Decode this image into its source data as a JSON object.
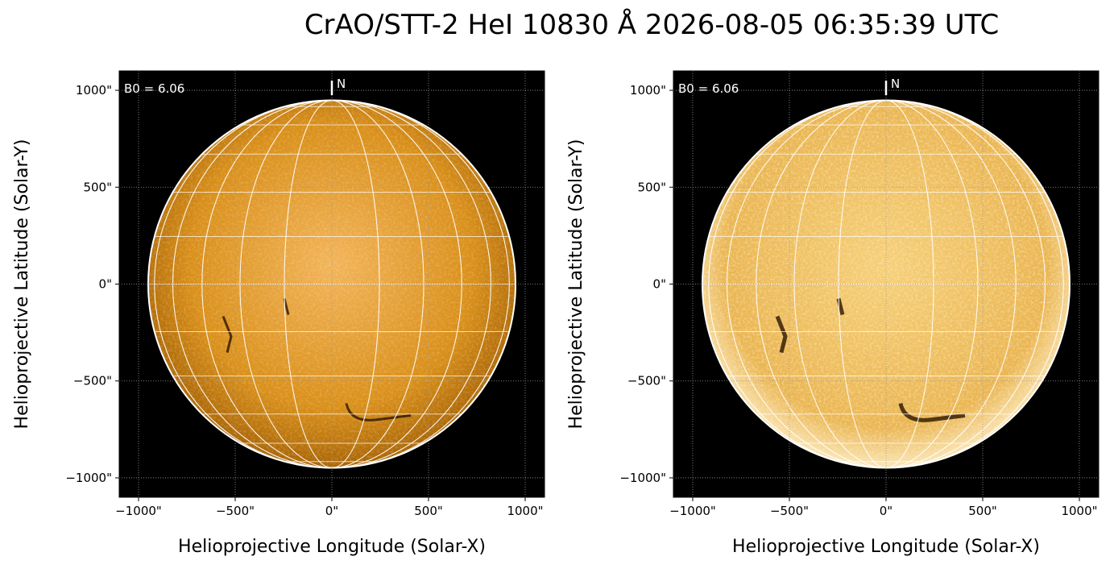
{
  "title": "CrAO/STT-2 HeI 10830 Å 2026-08-05 06:35:39 UTC",
  "chart_data": [
    {
      "type": "image",
      "xlabel": "Helioprojective Longitude (Solar-X)",
      "ylabel": "Helioprojective Latitude (Solar-Y)",
      "annotation": "B0 = 6.06",
      "north_label": "N",
      "xlim": [
        -1100,
        1100
      ],
      "ylim": [
        -1100,
        1100
      ],
      "xticks": [
        {
          "value": -1000,
          "label": "−1000\""
        },
        {
          "value": -500,
          "label": "−500\""
        },
        {
          "value": 0,
          "label": "0\""
        },
        {
          "value": 500,
          "label": "500\""
        },
        {
          "value": 1000,
          "label": "1000\""
        }
      ],
      "yticks": [
        {
          "value": -1000,
          "label": "−1000\""
        },
        {
          "value": -500,
          "label": "−500\""
        },
        {
          "value": 0,
          "label": "0\""
        },
        {
          "value": 500,
          "label": "500\""
        },
        {
          "value": 1000,
          "label": "1000\""
        }
      ]
    },
    {
      "type": "image",
      "xlabel": "Helioprojective Longitude (Solar-X)",
      "ylabel": "Helioprojective Latitude (Solar-Y)",
      "annotation": "B0 = 6.06",
      "north_label": "N",
      "xlim": [
        -1100,
        1100
      ],
      "ylim": [
        -1100,
        1100
      ],
      "xticks": [
        {
          "value": -1000,
          "label": "−1000\""
        },
        {
          "value": -500,
          "label": "−500\""
        },
        {
          "value": 0,
          "label": "0\""
        },
        {
          "value": 500,
          "label": "500\""
        },
        {
          "value": 1000,
          "label": "1000\""
        }
      ],
      "yticks": [
        {
          "value": -1000,
          "label": "−1000\""
        },
        {
          "value": -500,
          "label": "−500\""
        },
        {
          "value": 0,
          "label": "0\""
        },
        {
          "value": 500,
          "label": "500\""
        },
        {
          "value": 1000,
          "label": "1000\""
        }
      ]
    }
  ]
}
